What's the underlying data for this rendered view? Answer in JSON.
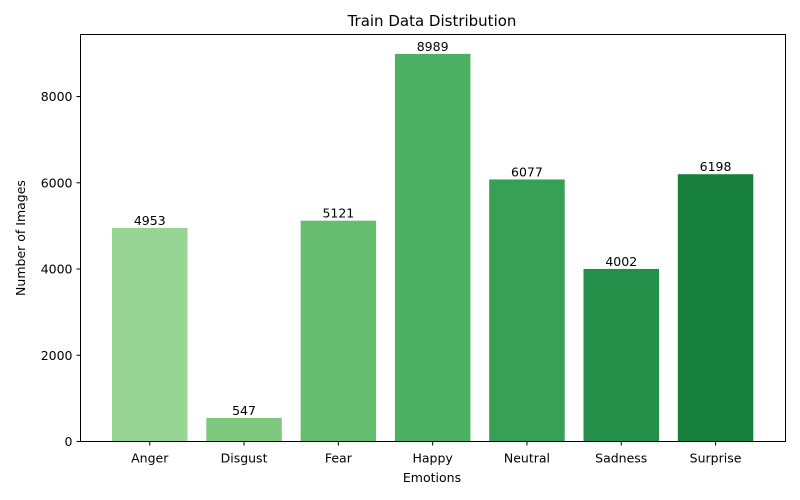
{
  "chart_data": {
    "type": "bar",
    "title": "Train Data Distribution",
    "xlabel": "Emotions",
    "ylabel": "Number of Images",
    "categories": [
      "Anger",
      "Disgust",
      "Fear",
      "Happy",
      "Neutral",
      "Sadness",
      "Surprise"
    ],
    "values": [
      4953,
      547,
      5121,
      8989,
      6077,
      4002,
      6198
    ],
    "data_labels": [
      "4953",
      "547",
      "5121",
      "8989",
      "6077",
      "4002",
      "6198"
    ],
    "colors": [
      "#98d594",
      "#7fc97f",
      "#66bd6f",
      "#4bb062",
      "#37a055",
      "#248f48",
      "#157f3b"
    ],
    "ylim": [
      0,
      9438.45
    ],
    "yticks": [
      0,
      2000,
      4000,
      6000,
      8000
    ],
    "ytick_labels": [
      "0",
      "2000",
      "4000",
      "6000",
      "8000"
    ],
    "grid": false,
    "legend": false
  }
}
